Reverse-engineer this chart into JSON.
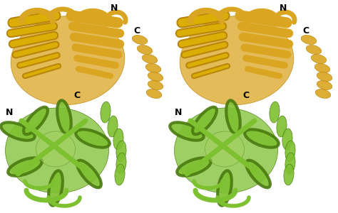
{
  "background_color": "#ffffff",
  "top_protein": {
    "color_main": "#DAA520",
    "color_dark": "#B8860B",
    "color_light": "#FFD700",
    "label_N": "N",
    "label_C": "C"
  },
  "bottom_protein": {
    "color_main": "#7DC030",
    "color_dark": "#4A7A10",
    "color_light": "#A8D060",
    "label_N": "N",
    "label_C": "C"
  },
  "label_fontsize": 9
}
